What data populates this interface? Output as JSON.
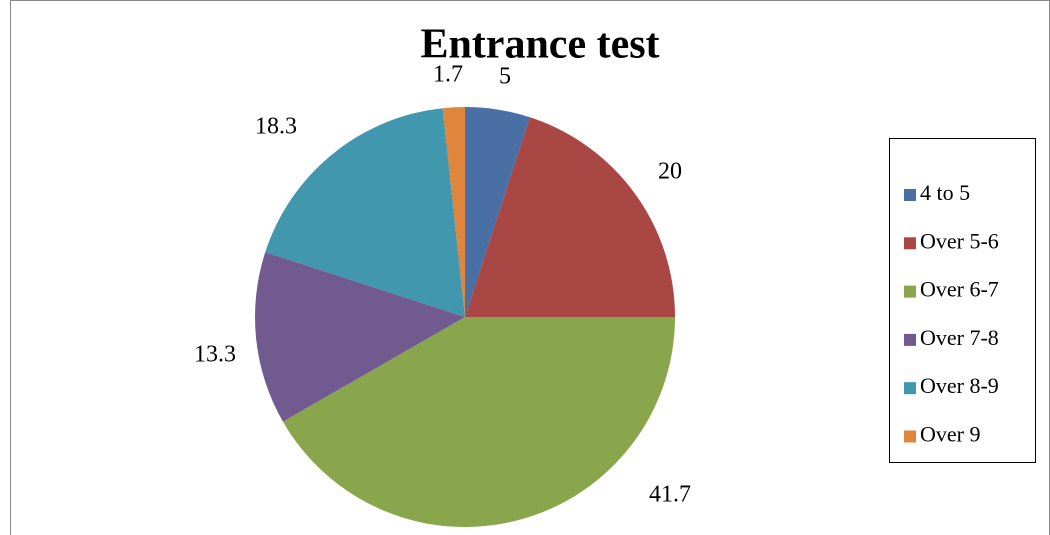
{
  "chart_data": {
    "type": "pie",
    "title": "Entrance test",
    "categories": [
      "4 to 5",
      "Over 5-6",
      "Over 6-7",
      "Over 7-8",
      "Over 8-9",
      "Over 9"
    ],
    "values": [
      5,
      20,
      41.7,
      13.3,
      18.3,
      1.7
    ],
    "colors": [
      "#4a6fa5",
      "#a84744",
      "#8aa64c",
      "#715a8f",
      "#4097ae",
      "#e0853c"
    ],
    "legend": "right"
  }
}
